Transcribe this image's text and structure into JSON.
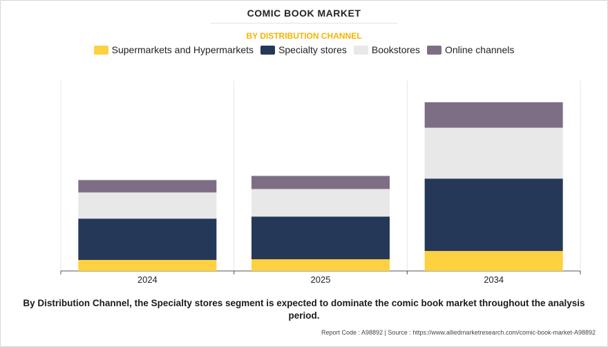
{
  "header": {
    "title": "COMIC BOOK MARKET",
    "subtitle": "BY DISTRIBUTION CHANNEL"
  },
  "chart_data": {
    "type": "bar",
    "stacked": true,
    "categories": [
      "2024",
      "2025",
      "2034"
    ],
    "series": [
      {
        "name": "Supermarkets and Hypermarkets",
        "color": "#fdd13f",
        "values": [
          8,
          8.5,
          14.5
        ]
      },
      {
        "name": "Specialty stores",
        "color": "#253858",
        "values": [
          30,
          31,
          52.5
        ]
      },
      {
        "name": "Bookstores",
        "color": "#e8e8e8",
        "values": [
          19,
          20,
          37
        ]
      },
      {
        "name": "Online channels",
        "color": "#7e6e85",
        "values": [
          9,
          9.5,
          18.5
        ]
      }
    ],
    "ylim": [
      0,
      138
    ],
    "grid": "vertical separators",
    "legend_position": "top-center"
  },
  "footer": {
    "caption": "By Distribution Channel, the Specialty stores segment is expected to dominate the comic book market throughout the analysis period.",
    "source": "Report Code : A98892  |  Source : https://www.alliedmarketresearch.com/comic-book-market-A98892"
  }
}
